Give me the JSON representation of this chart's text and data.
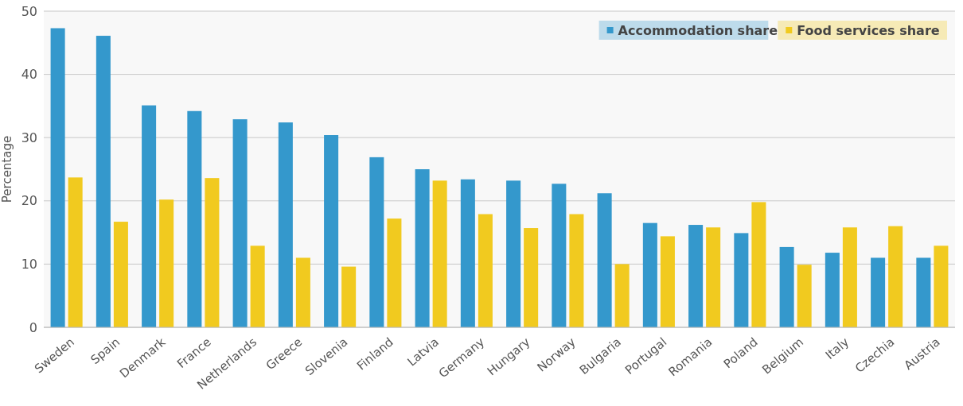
{
  "chart_data": {
    "type": "bar",
    "ylabel": "Percentage",
    "categories": [
      "Sweden",
      "Spain",
      "Denmark",
      "France",
      "Netherlands",
      "Greece",
      "Slovenia",
      "Finland",
      "Latvia",
      "Germany",
      "Hungary",
      "Norway",
      "Bulgaria",
      "Portugal",
      "Romania",
      "Poland",
      "Belgium",
      "Italy",
      "Czechia",
      "Austria"
    ],
    "series": [
      {
        "name": "Accommodation share",
        "color": "#3498cc",
        "values": [
          47.3,
          46.1,
          35.1,
          34.2,
          32.9,
          32.4,
          30.4,
          26.9,
          25.0,
          23.4,
          23.2,
          22.7,
          21.2,
          16.5,
          16.2,
          14.9,
          12.7,
          11.8,
          11.0,
          11.0
        ]
      },
      {
        "name": "Food services share",
        "color": "#f1ca1f",
        "values": [
          23.7,
          16.7,
          20.2,
          23.6,
          12.9,
          11.0,
          9.6,
          17.2,
          23.2,
          17.9,
          15.7,
          17.9,
          10.0,
          14.4,
          15.8,
          19.8,
          9.9,
          15.8,
          16.0,
          12.9
        ]
      }
    ],
    "ylim": [
      0,
      50
    ],
    "yticks": [
      0,
      10,
      20,
      30,
      40,
      50
    ],
    "grid": "y",
    "legend": "top right"
  }
}
